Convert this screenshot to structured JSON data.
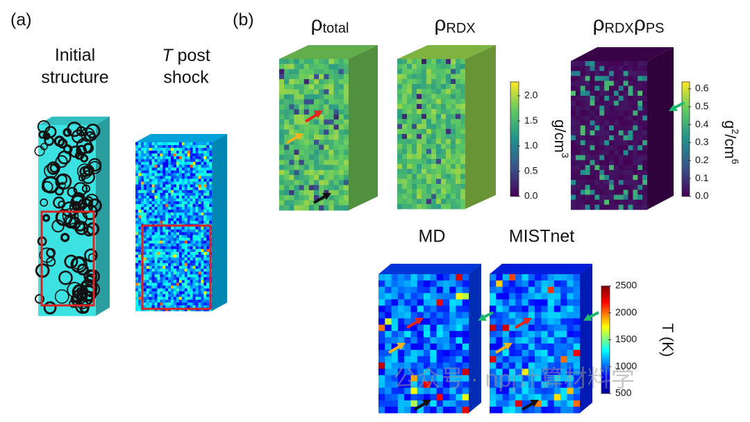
{
  "panel_a": {
    "label": "(a)",
    "initial_title": [
      "Initial",
      "structure"
    ],
    "post_title": {
      "italic": "T",
      "line1_rest": "post",
      "line2": "shock"
    }
  },
  "panel_b": {
    "label": "(b)",
    "rho_total": {
      "symbol": "ρ",
      "subscript": "total"
    },
    "rho_rdx": {
      "symbol": "ρ",
      "subscript": "RDX"
    },
    "rho_product": [
      {
        "symbol": "ρ",
        "subscript": "RDX"
      },
      {
        "symbol": "ρ",
        "subscript": "PS"
      }
    ],
    "density_colorbar": {
      "ticks": [
        "0.0",
        "0.5",
        "1.0",
        "1.5",
        "2.0"
      ],
      "unit": "g/cm",
      "unit_sup": "3"
    },
    "product_colorbar": {
      "ticks": [
        "0.0",
        "0.1",
        "0.2",
        "0.3",
        "0.4",
        "0.5",
        "0.6"
      ],
      "unit_a": "g",
      "unit_a_sup": "2",
      "unit_b": "/cm",
      "unit_b_sup": "6"
    },
    "md_title": "MD",
    "mistnet_title": "MISTnet",
    "temperature_colorbar": {
      "ticks": [
        "500",
        "1000",
        "1500",
        "2000",
        "2500"
      ],
      "unit": "T (K)"
    }
  },
  "watermark": "公众号 · npj计算材料学"
}
